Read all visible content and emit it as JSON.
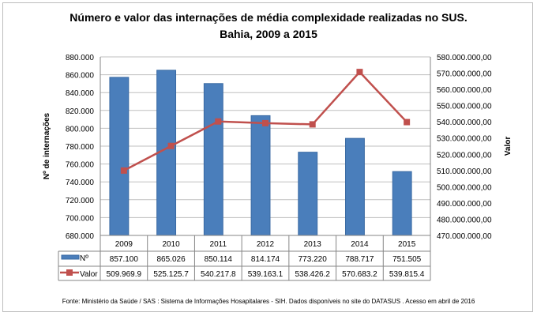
{
  "chart_data": {
    "type": "bar+line",
    "title": "Número e valor das internações de média complexidade realizadas no SUS.",
    "subtitle": "Bahia, 2009 a 2015",
    "categories": [
      "2009",
      "2010",
      "2011",
      "2012",
      "2013",
      "2014",
      "2015"
    ],
    "ylabel": "Nº de internações",
    "y2label": "Valor",
    "ylim": [
      680000,
      880000
    ],
    "y2lim": [
      470000000,
      580000000
    ],
    "yticks": [
      "680.000",
      "700.000",
      "720.000",
      "740.000",
      "760.000",
      "780.000",
      "800.000",
      "820.000",
      "840.000",
      "860.000",
      "880.000"
    ],
    "y2ticks": [
      "470.000.000,00",
      "480.000.000,00",
      "490.000.000,00",
      "500.000.000,00",
      "510.000.000,00",
      "520.000.000,00",
      "530.000.000,00",
      "540.000.000,00",
      "550.000.000,00",
      "560.000.000,00",
      "570.000.000,00",
      "580.000.000,00"
    ],
    "series": [
      {
        "name": "Nº",
        "type": "bar",
        "axis": "left",
        "color": "#4a7ebb",
        "values": [
          857100,
          865026,
          850114,
          814174,
          773220,
          788717,
          751505
        ],
        "labels": [
          "857.100",
          "865.026",
          "850.114",
          "814.174",
          "773.220",
          "788.717",
          "751.505"
        ]
      },
      {
        "name": "Valor",
        "type": "line",
        "axis": "right",
        "color": "#c0504d",
        "values": [
          509969900,
          525125700,
          540217800,
          539163100,
          538426200,
          570683200,
          539815400
        ],
        "labels": [
          "509.969.9",
          "525.125.7",
          "540.217.8",
          "539.163.1",
          "538.426.2",
          "570.683.2",
          "539.815.4"
        ]
      }
    ],
    "grid": true,
    "legend": "data-table",
    "source": "Fonte:  Ministério da Saúde / SAS : Sistema de Informações Hosapitalares - SIH. Dados disponíveis no site do DATASUS . Acesso em abril de 2016"
  }
}
